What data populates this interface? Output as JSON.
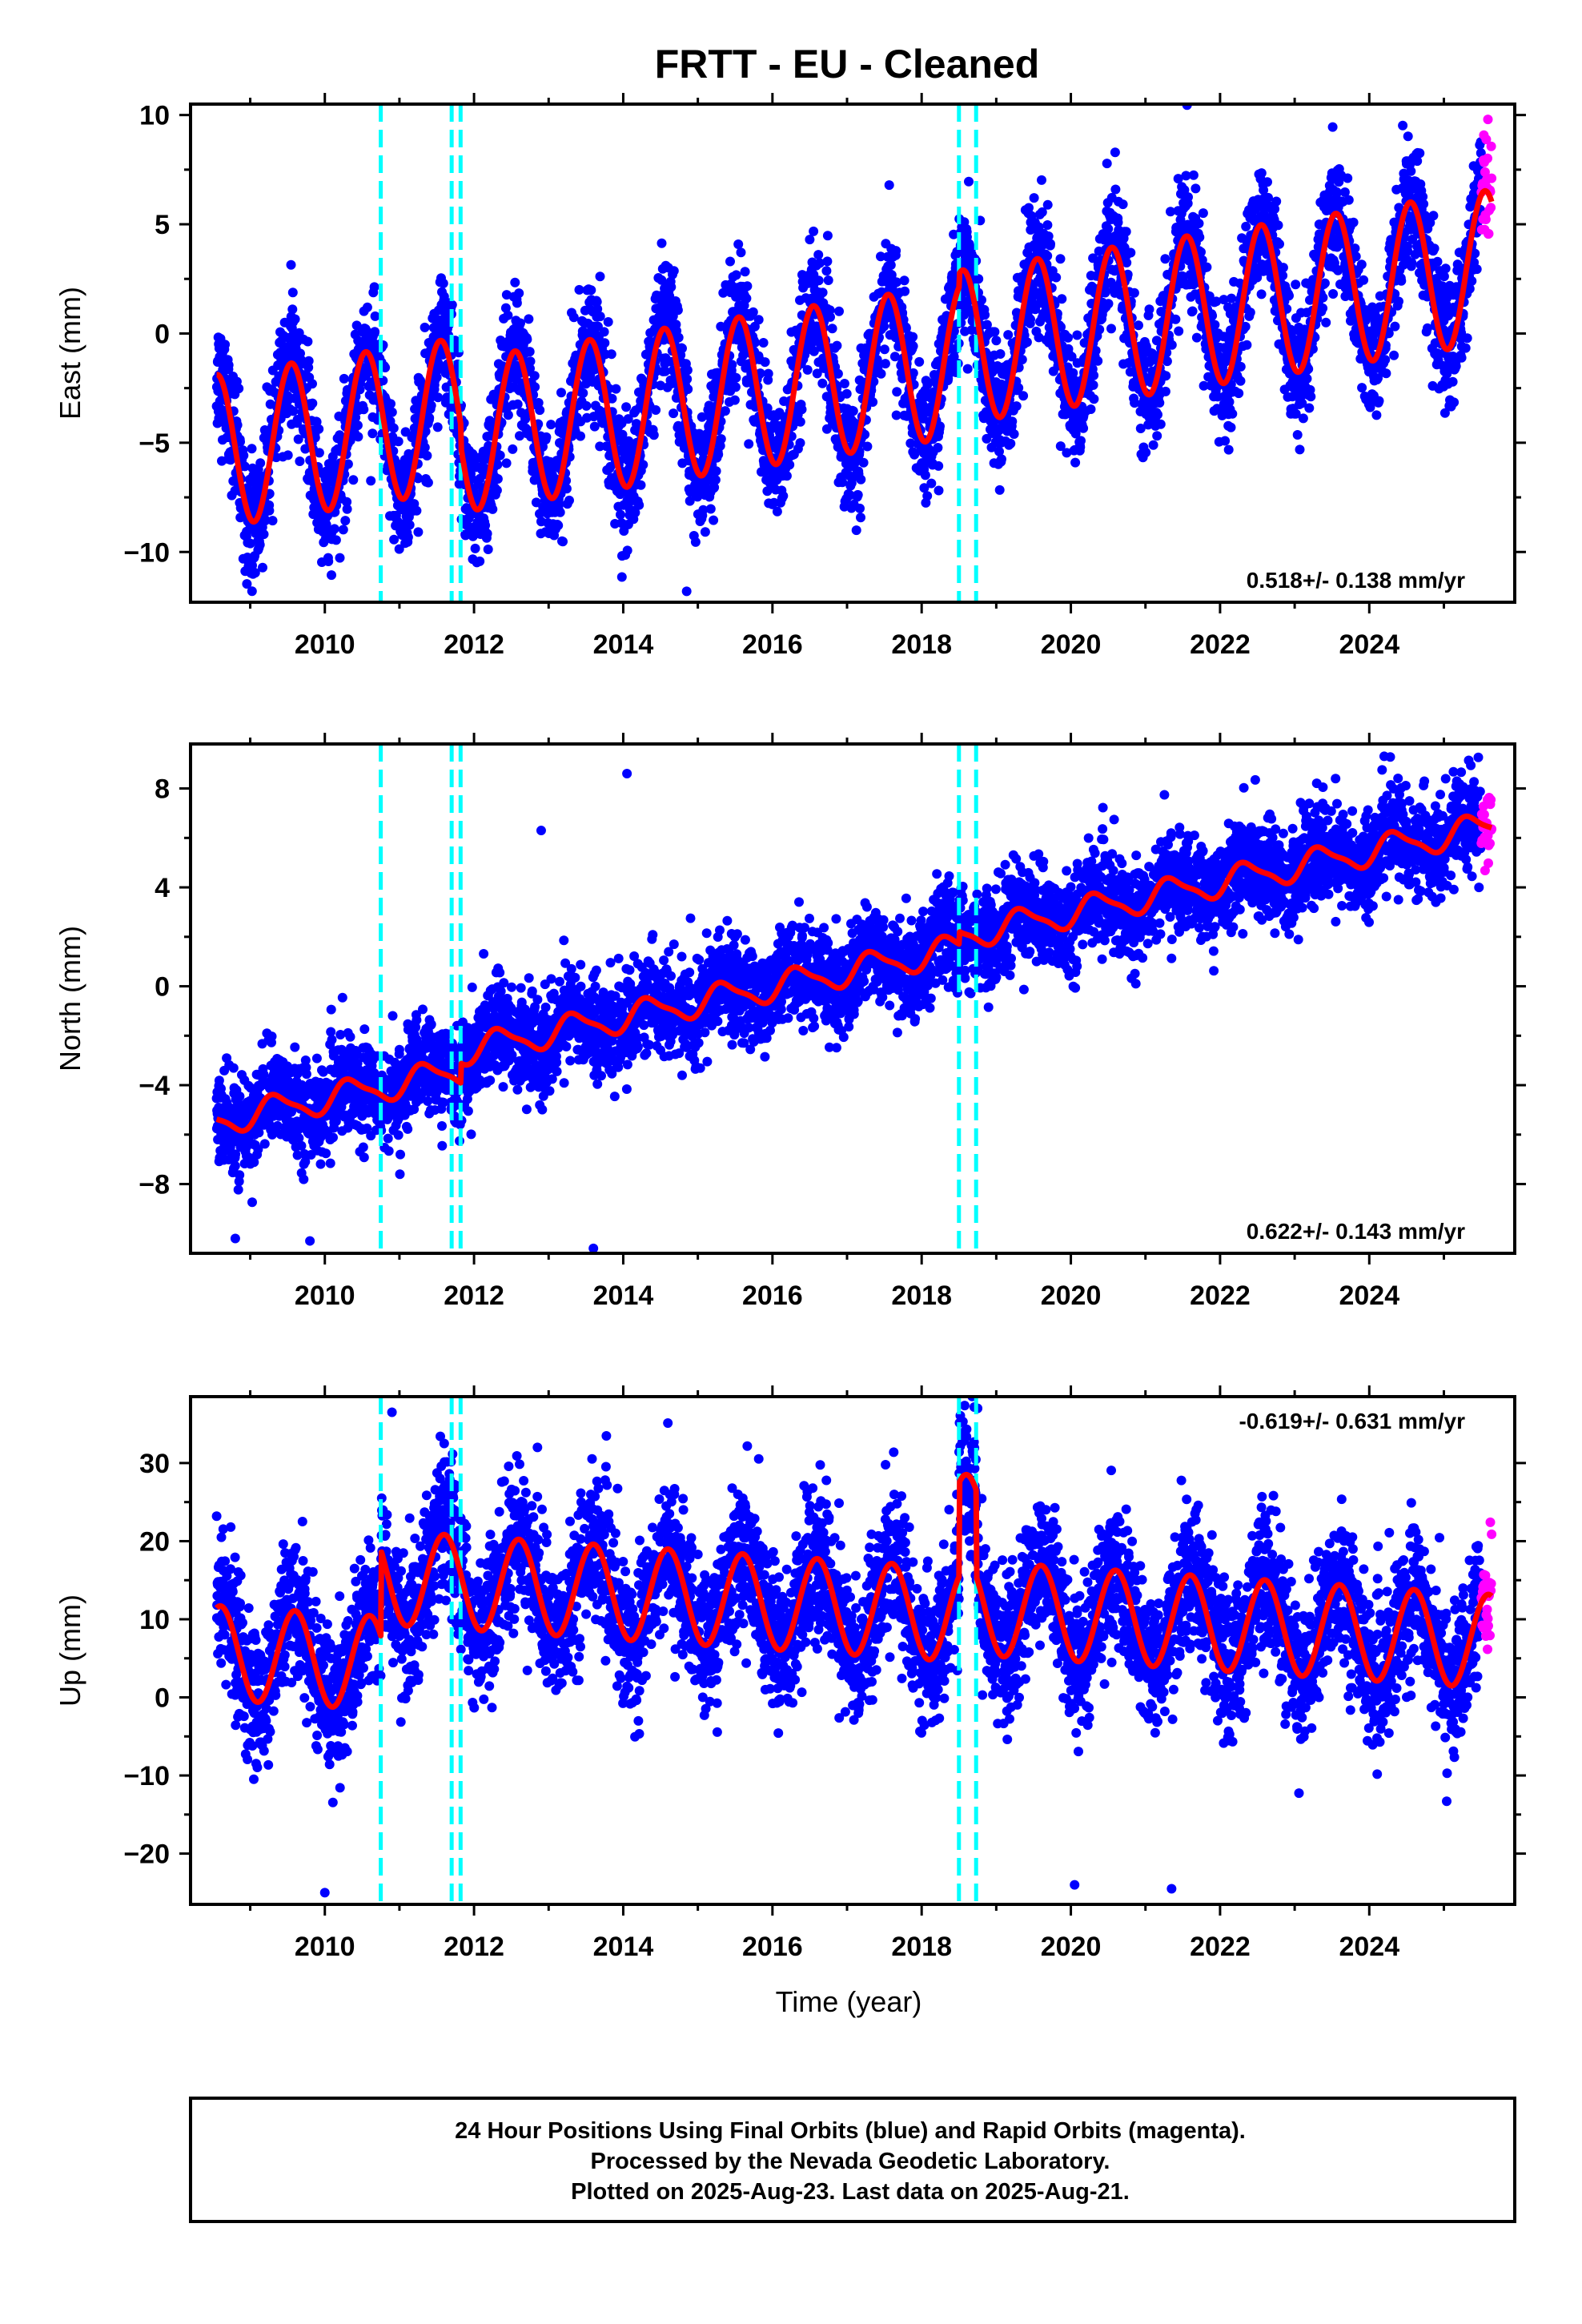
{
  "chart_data": {
    "title": "FRTT  - EU - Cleaned",
    "xlabel": "Time (year)",
    "xlim": [
      2008.2,
      2025.95
    ],
    "x_ticks": [
      2010,
      2012,
      2014,
      2016,
      2018,
      2020,
      2022,
      2024
    ],
    "x_tick_labels": [
      "2010",
      "2012",
      "2014",
      "2016",
      "2018",
      "2020",
      "2022",
      "2024"
    ],
    "data_start": 2008.55,
    "final_end": 2025.5,
    "data_end": 2025.64,
    "event_lines": [
      2010.75,
      2011.7,
      2011.82,
      2018.5,
      2018.73
    ],
    "colors": {
      "final_orbits": "#0000ff",
      "rapid_orbits": "#ff00ff",
      "model_fit": "#ff0000",
      "event_lines": "#00ffff"
    },
    "panels": [
      {
        "name": "east",
        "type": "scatter",
        "ylabel": "East (mm)",
        "ylim": [
          -12.3,
          10.5
        ],
        "y_ticks": [
          10,
          5,
          0,
          -5,
          -10
        ],
        "y_tick_labels": [
          "10",
          "5",
          "0",
          "-5",
          "-10"
        ],
        "rate_text": "0.518+/- 0.138 mm/yr",
        "rate_position": "bottom-right",
        "model": {
          "offset": -1.0,
          "trend": 0.518,
          "trend_ref": 2017.0,
          "annual_amp": 3.5,
          "annual_phase": 2008.3,
          "semiannual_amp": 0.0
        },
        "steps": [
          {
            "at": 2011.82,
            "size": -1.0
          },
          {
            "at": 2018.5,
            "size": 0.6
          }
        ],
        "scatter_sd": 1.4,
        "outliers": [
          [
            2014.85,
            -11.8
          ],
          [
            2016.5,
            4.3
          ],
          [
            2024.85,
            -2.4
          ]
        ]
      },
      {
        "name": "north",
        "type": "scatter",
        "ylabel": "North (mm)",
        "ylim": [
          -10.8,
          9.8
        ],
        "y_ticks": [
          8,
          4,
          0,
          -4,
          -8
        ],
        "y_tick_labels": [
          "8",
          "4",
          "0",
          "-4",
          "-8"
        ],
        "rate_text": "0.622+/- 0.143 mm/yr",
        "rate_position": "bottom-right",
        "model": {
          "offset": -0.2,
          "trend": 0.622,
          "trend_ref": 2017.0,
          "annual_amp": 0.55,
          "annual_phase": 2008.1,
          "semiannual_amp": 0.15
        },
        "steps": [
          {
            "at": 2011.82,
            "size": 0.8
          },
          {
            "at": 2018.5,
            "size": 0.5
          }
        ],
        "scatter_sd": 0.95,
        "outliers": [
          [
            2014.05,
            8.6
          ],
          [
            2013.6,
            -10.6
          ],
          [
            2012.9,
            6.3
          ],
          [
            2024.2,
            9.3
          ],
          [
            2009.8,
            -10.3
          ],
          [
            2008.8,
            -10.2
          ]
        ]
      },
      {
        "name": "up",
        "type": "scatter",
        "ylabel": "Up (mm)",
        "ylim": [
          -26.5,
          38.5
        ],
        "y_ticks": [
          30,
          20,
          10,
          0,
          -10,
          -20
        ],
        "y_tick_labels": [
          "30",
          "20",
          "10",
          "0",
          "-10",
          "-20"
        ],
        "rate_text": "-0.619+/- 0.631 mm/yr",
        "rate_position": "top-right",
        "model": {
          "offset": 0.5,
          "trend": -0.619,
          "trend_ref": 2017.0,
          "annual_amp": 6.0,
          "annual_phase": 2008.35,
          "semiannual_amp": 0.0
        },
        "steps": [
          {
            "at": 2010.75,
            "size": 11.0
          },
          {
            "at": 2018.5,
            "size": 12.0
          },
          {
            "at": 2018.73,
            "size": -11.0
          }
        ],
        "scatter_sd": 4.5,
        "outliers": [
          [
            2010.9,
            36.5
          ],
          [
            2018.75,
            37.0
          ],
          [
            2011.6,
            32.5
          ],
          [
            2012.85,
            32.0
          ],
          [
            2021.35,
            -24.5
          ],
          [
            2020.05,
            -24.0
          ],
          [
            2010.0,
            -25.0
          ]
        ]
      }
    ]
  },
  "footer": {
    "line1": "24 Hour Positions Using Final Orbits (blue) and Rapid Orbits (magenta).",
    "line2": "Processed by the Nevada Geodetic Laboratory.",
    "line3": "Plotted on 2025-Aug-23. Last data on 2025-Aug-21."
  }
}
